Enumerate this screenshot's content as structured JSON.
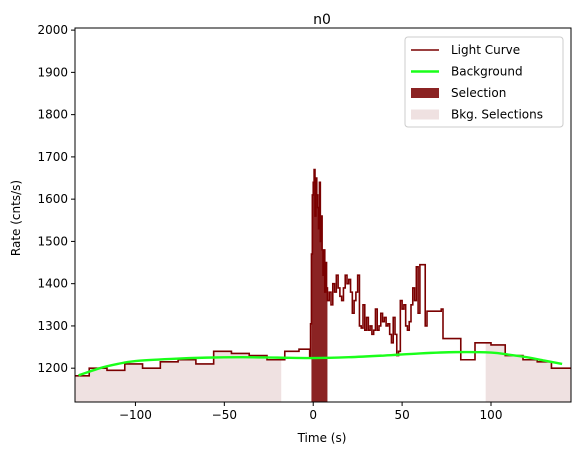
{
  "chart_data": {
    "type": "line",
    "title": "n0",
    "xlabel": "Time (s)",
    "ylabel": "Rate (cnts/s)",
    "xlim": [
      -134,
      145
    ],
    "ylim": [
      1120,
      2005
    ],
    "x_ticks": [
      -100,
      -50,
      0,
      50,
      100
    ],
    "x_tick_labels": [
      "−100",
      "−50",
      "0",
      "50",
      "100"
    ],
    "y_ticks": [
      1200,
      1300,
      1400,
      1500,
      1600,
      1700,
      1800,
      1900,
      2000
    ],
    "y_tick_labels": [
      "1200",
      "1300",
      "1400",
      "1500",
      "1600",
      "1700",
      "1800",
      "1900",
      "2000"
    ],
    "grid": false,
    "legend_position": "top-right",
    "colors": {
      "light_curve": "#7a0000",
      "background": "#1aff1a",
      "selection": "#8b2323",
      "bkg_selection": "#efe1e1"
    },
    "legend": [
      {
        "label": "Light Curve",
        "kind": "line",
        "color": "#7a0000"
      },
      {
        "label": "Background",
        "kind": "line",
        "color": "#1aff1a"
      },
      {
        "label": "Selection",
        "kind": "patch",
        "color": "#8b2323"
      },
      {
        "label": "Bkg. Selections",
        "kind": "patch",
        "color": "#efe1e1"
      }
    ],
    "series": [
      {
        "name": "Light Curve",
        "type": "step",
        "points": [
          [
            -134,
            1182
          ],
          [
            -126,
            1200
          ],
          [
            -116,
            1195
          ],
          [
            -106,
            1210
          ],
          [
            -96,
            1200
          ],
          [
            -86,
            1215
          ],
          [
            -76,
            1220
          ],
          [
            -66,
            1210
          ],
          [
            -56,
            1240
          ],
          [
            -46,
            1235
          ],
          [
            -36,
            1230
          ],
          [
            -26,
            1220
          ],
          [
            -16,
            1240
          ],
          [
            -8,
            1245
          ],
          [
            -2,
            1225
          ],
          [
            -1.5,
            1305
          ],
          [
            -1,
            1470
          ],
          [
            -0.5,
            1610
          ],
          [
            0,
            1640
          ],
          [
            0.5,
            1670
          ],
          [
            1,
            1560
          ],
          [
            1.5,
            1650
          ],
          [
            2,
            1610
          ],
          [
            2.5,
            1580
          ],
          [
            3,
            1530
          ],
          [
            3.5,
            1640
          ],
          [
            4,
            1500
          ],
          [
            4.5,
            1560
          ],
          [
            5,
            1480
          ],
          [
            5.5,
            1420
          ],
          [
            6,
            1480
          ],
          [
            6.5,
            1380
          ],
          [
            7,
            1450
          ],
          [
            7.5,
            1390
          ],
          [
            8,
            1360
          ],
          [
            9,
            1380
          ],
          [
            10,
            1350
          ],
          [
            11,
            1400
          ],
          [
            12,
            1380
          ],
          [
            13,
            1420
          ],
          [
            14,
            1390
          ],
          [
            15,
            1370
          ],
          [
            16,
            1360
          ],
          [
            17,
            1390
          ],
          [
            18,
            1420
          ],
          [
            19,
            1400
          ],
          [
            20,
            1410
          ],
          [
            21,
            1380
          ],
          [
            22,
            1330
          ],
          [
            23,
            1360
          ],
          [
            24,
            1380
          ],
          [
            25,
            1420
          ],
          [
            26,
            1300
          ],
          [
            27,
            1295
          ],
          [
            28,
            1350
          ],
          [
            29,
            1290
          ],
          [
            30,
            1320
          ],
          [
            31,
            1290
          ],
          [
            32,
            1300
          ],
          [
            33,
            1280
          ],
          [
            34,
            1290
          ],
          [
            35,
            1340
          ],
          [
            36,
            1290
          ],
          [
            37,
            1300
          ],
          [
            38,
            1330
          ],
          [
            39,
            1310
          ],
          [
            40,
            1320
          ],
          [
            41,
            1300
          ],
          [
            42,
            1305
          ],
          [
            43,
            1280
          ],
          [
            44,
            1260
          ],
          [
            45,
            1320
          ],
          [
            46,
            1280
          ],
          [
            47,
            1230
          ],
          [
            48,
            1240
          ],
          [
            49,
            1360
          ],
          [
            50,
            1340
          ],
          [
            51,
            1350
          ],
          [
            52,
            1300
          ],
          [
            53,
            1290
          ],
          [
            54,
            1310
          ],
          [
            55,
            1350
          ],
          [
            56,
            1390
          ],
          [
            57,
            1360
          ],
          [
            58,
            1440
          ],
          [
            59,
            1330
          ],
          [
            60,
            1445
          ],
          [
            62,
            1445
          ],
          [
            63,
            1300
          ],
          [
            64,
            1335
          ],
          [
            72,
            1340
          ],
          [
            73,
            1270
          ],
          [
            82,
            1270
          ],
          [
            83,
            1220
          ],
          [
            90,
            1220
          ],
          [
            91,
            1260
          ],
          [
            100,
            1255
          ],
          [
            108,
            1230
          ],
          [
            118,
            1220
          ],
          [
            126,
            1215
          ],
          [
            134,
            1200
          ],
          [
            145,
            1200
          ]
        ]
      },
      {
        "name": "Background",
        "type": "smooth",
        "points": [
          [
            -132,
            1183
          ],
          [
            -120,
            1200
          ],
          [
            -110,
            1210
          ],
          [
            -100,
            1217
          ],
          [
            -80,
            1222
          ],
          [
            -60,
            1225
          ],
          [
            -40,
            1226
          ],
          [
            -20,
            1225
          ],
          [
            0,
            1224
          ],
          [
            20,
            1226
          ],
          [
            40,
            1230
          ],
          [
            60,
            1235
          ],
          [
            80,
            1238
          ],
          [
            100,
            1237
          ],
          [
            110,
            1232
          ],
          [
            120,
            1226
          ],
          [
            130,
            1218
          ],
          [
            140,
            1210
          ]
        ]
      }
    ],
    "selection": [
      -1,
      8
    ],
    "bkg_selections": [
      [
        -134,
        -18
      ],
      [
        97,
        145
      ]
    ]
  }
}
